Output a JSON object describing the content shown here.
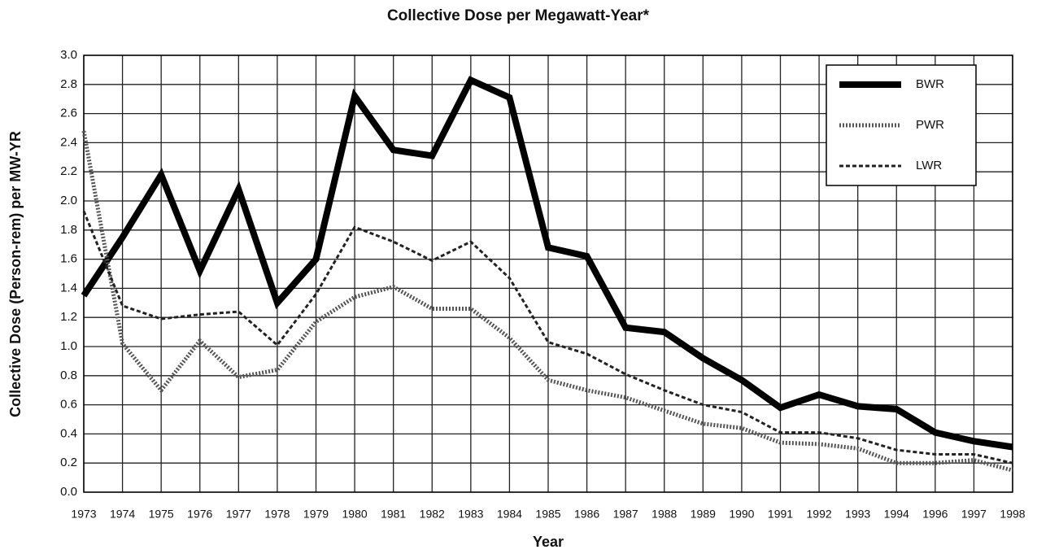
{
  "chart_data": {
    "type": "line",
    "title": "Collective Dose per Megawatt-Year*",
    "x_label": "Year",
    "y_label": "Collective Dose (Person-rem) per MW-YR",
    "categories": [
      "1973",
      "1974",
      "1975",
      "1976",
      "1977",
      "1978",
      "1979",
      "1980",
      "1981",
      "1982",
      "1983",
      "1984",
      "1985",
      "1986",
      "1987",
      "1988",
      "1989",
      "1990",
      "1991",
      "1992",
      "1993",
      "1994",
      "1996",
      "1997",
      "1998"
    ],
    "series": [
      {
        "name": "BWR",
        "color": "#000000",
        "values": [
          1.35,
          1.75,
          2.18,
          1.52,
          2.08,
          1.3,
          1.6,
          2.72,
          2.35,
          2.31,
          2.83,
          2.71,
          1.68,
          1.62,
          1.13,
          1.1,
          0.92,
          0.77,
          0.58,
          0.67,
          0.59,
          0.57,
          0.41,
          0.35,
          0.31
        ]
      },
      {
        "name": "PWR",
        "color": "#555555",
        "values": [
          2.48,
          1.02,
          0.7,
          1.04,
          0.79,
          0.84,
          1.17,
          1.34,
          1.41,
          1.26,
          1.26,
          1.06,
          0.77,
          0.7,
          0.65,
          0.56,
          0.47,
          0.44,
          0.34,
          0.33,
          0.3,
          0.2,
          0.2,
          0.22,
          0.15
        ]
      },
      {
        "name": "LWR",
        "color": "#222222",
        "values": [
          1.93,
          1.28,
          1.19,
          1.22,
          1.24,
          1.01,
          1.36,
          1.82,
          1.72,
          1.59,
          1.72,
          1.47,
          1.03,
          0.95,
          0.81,
          0.7,
          0.6,
          0.55,
          0.41,
          0.41,
          0.37,
          0.29,
          0.26,
          0.26,
          0.2
        ]
      }
    ],
    "ylim": [
      0,
      3
    ],
    "yticks": [
      {
        "value": 0,
        "label": "0.0"
      },
      0.2,
      0.4,
      0.6,
      0.8,
      {
        "value": 1,
        "label": "1.0"
      },
      1.2,
      1.4,
      1.6,
      1.8,
      {
        "value": 2,
        "label": "2.0"
      },
      2.2,
      2.4,
      2.6,
      2.8,
      {
        "value": 3,
        "label": "3.0"
      }
    ],
    "grid": true,
    "legend": "upper right"
  }
}
